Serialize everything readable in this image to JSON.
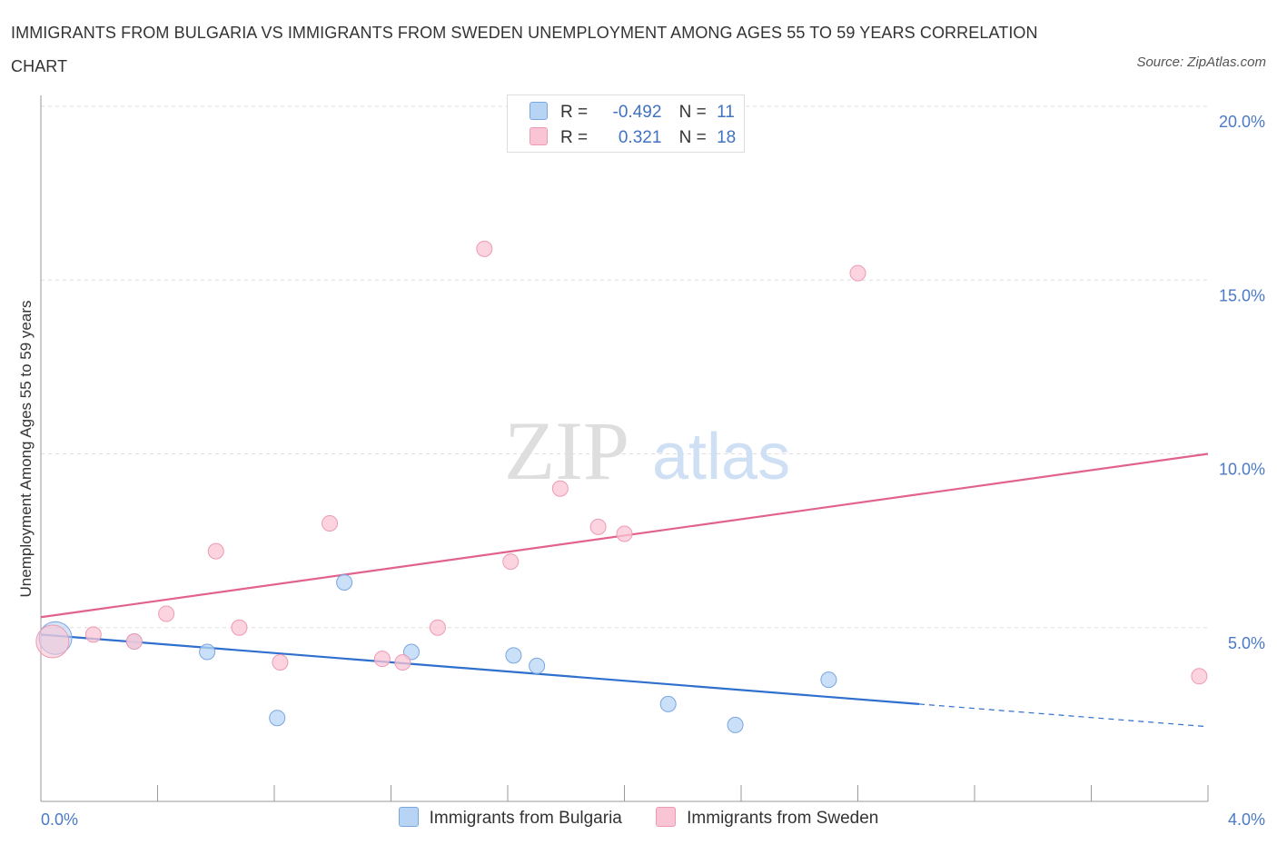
{
  "header": {
    "title": "IMMIGRANTS FROM BULGARIA VS IMMIGRANTS FROM SWEDEN UNEMPLOYMENT AMONG AGES 55 TO 59 YEARS CORRELATION CHART",
    "source": "Source: ZipAtlas.com"
  },
  "legend": {
    "bulgaria": {
      "r_label": "R =",
      "r_value": "-0.492",
      "n_label": "N =",
      "n_value": "11"
    },
    "sweden": {
      "r_label": "R =",
      "r_value": "0.321",
      "n_label": "N =",
      "n_value": "18"
    }
  },
  "watermark": {
    "zip": "ZIP",
    "atlas": "atlas"
  },
  "colors": {
    "bulgaria_fill": "#b8d4f5",
    "bulgaria_stroke": "#7aa6e0",
    "bulgaria_line": "#2f6fcd",
    "sweden_fill": "#f9c5d4",
    "sweden_stroke": "#ee9ab2",
    "sweden_line": "#e2628e",
    "grid": "#dddddd",
    "tick_label": "#4a7ac9"
  },
  "chart_data": {
    "type": "scatter",
    "title": "IMMIGRANTS FROM BULGARIA VS IMMIGRANTS FROM SWEDEN UNEMPLOYMENT AMONG AGES 55 TO 59 YEARS CORRELATION CHART",
    "xlabel": "",
    "ylabel": "Unemployment Among Ages 55 to 59 years",
    "xlim": [
      0,
      4
    ],
    "ylim": [
      0,
      20
    ],
    "x_tick_labels": [
      "0.0%",
      "4.0%"
    ],
    "y_ticks": [
      5,
      10,
      15,
      20
    ],
    "y_tick_labels": [
      "5.0%",
      "10.0%",
      "15.0%",
      "20.0%"
    ],
    "legend_position": "top-center",
    "series": [
      {
        "name": "Immigrants from Bulgaria",
        "points": [
          {
            "x": 0.05,
            "y": 4.7,
            "big": true
          },
          {
            "x": 0.32,
            "y": 4.6
          },
          {
            "x": 0.57,
            "y": 4.3
          },
          {
            "x": 0.81,
            "y": 2.4
          },
          {
            "x": 1.04,
            "y": 6.3
          },
          {
            "x": 1.27,
            "y": 4.3
          },
          {
            "x": 1.62,
            "y": 4.2
          },
          {
            "x": 1.7,
            "y": 3.9
          },
          {
            "x": 2.15,
            "y": 2.8
          },
          {
            "x": 2.38,
            "y": 2.2
          },
          {
            "x": 2.7,
            "y": 3.5
          }
        ],
        "trend": {
          "x0": 0.0,
          "y0": 4.8,
          "x1": 3.01,
          "y1": 2.8,
          "dash_x1": 4.0,
          "dash_y1": 2.15
        }
      },
      {
        "name": "Immigrants from Sweden",
        "points": [
          {
            "x": 0.04,
            "y": 4.6,
            "big": true
          },
          {
            "x": 0.18,
            "y": 4.8
          },
          {
            "x": 0.32,
            "y": 4.6
          },
          {
            "x": 0.43,
            "y": 5.4
          },
          {
            "x": 0.6,
            "y": 7.2
          },
          {
            "x": 0.68,
            "y": 5.0
          },
          {
            "x": 0.82,
            "y": 4.0
          },
          {
            "x": 0.99,
            "y": 8.0
          },
          {
            "x": 1.17,
            "y": 4.1
          },
          {
            "x": 1.24,
            "y": 4.0
          },
          {
            "x": 1.36,
            "y": 5.0
          },
          {
            "x": 1.52,
            "y": 15.9
          },
          {
            "x": 1.61,
            "y": 6.9
          },
          {
            "x": 1.78,
            "y": 9.0
          },
          {
            "x": 1.91,
            "y": 7.9
          },
          {
            "x": 2.0,
            "y": 7.7
          },
          {
            "x": 2.8,
            "y": 15.2
          },
          {
            "x": 3.97,
            "y": 3.6
          }
        ],
        "trend": {
          "x0": 0.0,
          "y0": 5.3,
          "x1": 4.0,
          "y1": 10.0
        }
      }
    ]
  }
}
